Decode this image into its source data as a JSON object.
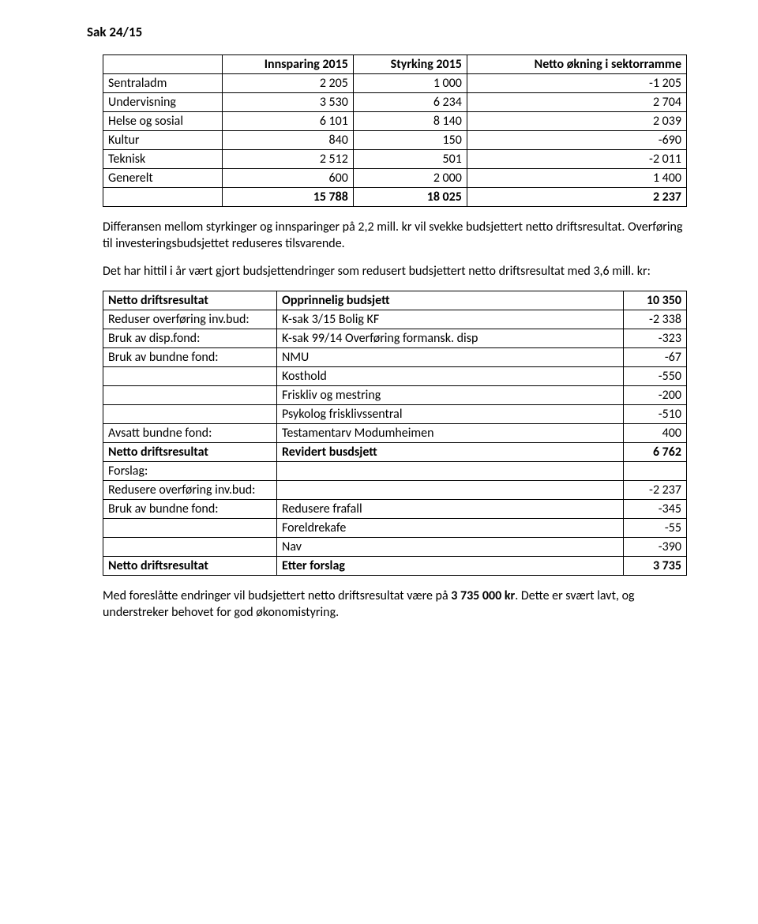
{
  "heading": "Sak 24/15",
  "table1": {
    "headers": [
      "",
      "Innsparing 2015",
      "Styrking 2015",
      "Netto økning i sektorramme"
    ],
    "rows": [
      [
        "Sentraladm",
        "2 205",
        "1 000",
        "-1 205"
      ],
      [
        "Undervisning",
        "3 530",
        "6 234",
        "2 704"
      ],
      [
        "Helse og sosial",
        "6 101",
        "8 140",
        "2 039"
      ],
      [
        "Kultur",
        "840",
        "150",
        "-690"
      ],
      [
        "Teknisk",
        "2 512",
        "501",
        "-2 011"
      ],
      [
        "Generelt",
        "600",
        "2 000",
        "1 400"
      ]
    ],
    "total": [
      "",
      "15 788",
      "18 025",
      "2 237"
    ]
  },
  "para1": "Differansen mellom styrkinger og innsparinger på 2,2 mill. kr vil svekke budsjettert netto driftsresultat. Overføring til investeringsbudsjettet reduseres tilsvarende.",
  "para2": "Det har hittil i år vært gjort budsjettendringer som redusert budsjettert netto driftsresultat med 3,6 mill. kr:",
  "table2": {
    "rows": [
      {
        "cells": [
          "Netto driftsresultat",
          "Opprinnelig budsjett",
          "10 350"
        ],
        "bold": true
      },
      {
        "cells": [
          "Reduser overføring inv.bud:",
          "K-sak 3/15 Bolig KF",
          "-2 338"
        ],
        "bold": false
      },
      {
        "cells": [
          "Bruk av disp.fond:",
          "K-sak 99/14 Overføring formansk. disp",
          "-323"
        ],
        "bold": false
      },
      {
        "cells": [
          "Bruk av bundne fond:",
          "NMU",
          "-67"
        ],
        "bold": false
      },
      {
        "cells": [
          "",
          "Kosthold",
          "-550"
        ],
        "bold": false
      },
      {
        "cells": [
          "",
          "Friskliv og mestring",
          "-200"
        ],
        "bold": false
      },
      {
        "cells": [
          "",
          "Psykolog frisklivssentral",
          "-510"
        ],
        "bold": false
      },
      {
        "cells": [
          "Avsatt bundne fond:",
          "Testamentarv Modumheimen",
          "400"
        ],
        "bold": false
      },
      {
        "cells": [
          "Netto driftsresultat",
          "Revidert busdsjett",
          "6 762"
        ],
        "bold": true
      },
      {
        "cells": [
          "Forslag:",
          "",
          ""
        ],
        "bold": false
      },
      {
        "cells": [
          "Redusere overføring inv.bud:",
          "",
          "-2 237"
        ],
        "bold": false
      },
      {
        "cells": [
          "Bruk av bundne fond:",
          "Redusere frafall",
          "-345"
        ],
        "bold": false
      },
      {
        "cells": [
          "",
          "Foreldrekafe",
          "-55"
        ],
        "bold": false
      },
      {
        "cells": [
          "",
          "Nav",
          "-390"
        ],
        "bold": false
      },
      {
        "cells": [
          "Netto driftsresultat",
          "Etter forslag",
          "3 735"
        ],
        "bold": true
      }
    ]
  },
  "footer": {
    "pre": "Med foreslåtte endringer vil budsjettert netto driftsresultat være på ",
    "bold": "3 735 000 kr",
    "post": ". Dette er svært lavt, og understreker behovet for god økonomistyring."
  }
}
